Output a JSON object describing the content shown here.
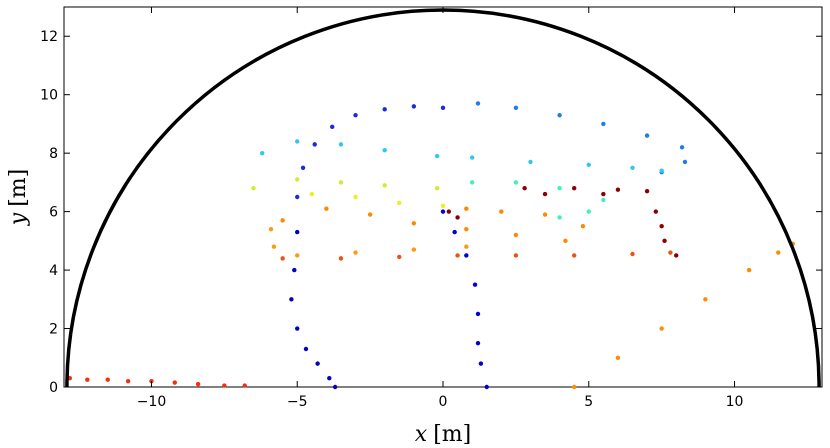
{
  "chart_data": {
    "type": "scatter",
    "title": "",
    "xlabel": {
      "symbol": "x",
      "unit": "[m]"
    },
    "ylabel": {
      "symbol": "y",
      "unit": "[m]"
    },
    "xlim": [
      -13,
      13
    ],
    "ylim": [
      0,
      13
    ],
    "xticks": [
      -10,
      -5,
      0,
      5,
      10
    ],
    "yticks": [
      0,
      2,
      4,
      6,
      8,
      10,
      12
    ],
    "grid": false,
    "legend": "none",
    "colormap": "jet",
    "boundary": {
      "shape": "semicircle",
      "center": [
        0,
        0
      ],
      "radius": 12.9,
      "color": "#000000"
    },
    "series": [
      {
        "color": "#f03010",
        "points": [
          [
            -12.8,
            0.3
          ],
          [
            -12.2,
            0.25
          ],
          [
            -11.5,
            0.25
          ],
          [
            -10.8,
            0.2
          ],
          [
            -10.0,
            0.2
          ],
          [
            -9.2,
            0.15
          ],
          [
            -8.4,
            0.1
          ],
          [
            -7.5,
            0.05
          ],
          [
            -6.8,
            0.05
          ]
        ]
      },
      {
        "color": "#0000c8",
        "points": [
          [
            -5.0,
            5.3
          ],
          [
            -5.1,
            4.0
          ],
          [
            -5.2,
            3.0
          ],
          [
            -5.0,
            2.0
          ],
          [
            -4.7,
            1.3
          ],
          [
            -4.3,
            0.8
          ],
          [
            -3.9,
            0.3
          ],
          [
            -3.7,
            0.0
          ]
        ]
      },
      {
        "color": "#0000d8",
        "points": [
          [
            0.0,
            6.0
          ],
          [
            0.4,
            5.3
          ],
          [
            0.8,
            4.5
          ],
          [
            1.1,
            3.5
          ],
          [
            1.2,
            2.5
          ],
          [
            1.2,
            1.5
          ],
          [
            1.3,
            0.8
          ],
          [
            1.5,
            0.0
          ]
        ]
      },
      {
        "color": "#1a2ae0",
        "points": [
          [
            -5.0,
            6.5
          ],
          [
            -4.8,
            7.5
          ],
          [
            -4.4,
            8.3
          ],
          [
            -3.8,
            8.9
          ],
          [
            -3.0,
            9.3
          ],
          [
            -2.0,
            9.5
          ],
          [
            -1.0,
            9.6
          ],
          [
            0.0,
            9.55
          ]
        ]
      },
      {
        "color": "#1e7cf0",
        "points": [
          [
            1.2,
            9.7
          ],
          [
            2.5,
            9.55
          ],
          [
            4.0,
            9.3
          ],
          [
            5.5,
            9.0
          ],
          [
            7.0,
            8.6
          ],
          [
            8.2,
            8.2
          ],
          [
            8.3,
            7.7
          ],
          [
            7.5,
            7.35
          ]
        ]
      },
      {
        "color": "#30c8f0",
        "points": [
          [
            -6.2,
            8.0
          ],
          [
            -5.0,
            8.4
          ],
          [
            -3.5,
            8.3
          ],
          [
            -2.0,
            8.1
          ],
          [
            -0.2,
            7.9
          ],
          [
            1.0,
            7.85
          ],
          [
            3.0,
            7.7
          ],
          [
            5.0,
            7.6
          ],
          [
            6.5,
            7.5
          ],
          [
            7.5,
            7.4
          ]
        ]
      },
      {
        "color": "#40f0c0",
        "points": [
          [
            1.0,
            7.0
          ],
          [
            2.5,
            7.0
          ],
          [
            4.0,
            6.8
          ],
          [
            5.5,
            6.4
          ],
          [
            5.0,
            6.0
          ],
          [
            4.0,
            5.8
          ]
        ]
      },
      {
        "color": "#c8f030",
        "points": [
          [
            -6.5,
            6.8
          ],
          [
            -5.0,
            7.1
          ],
          [
            -3.5,
            7.0
          ],
          [
            -2.0,
            6.9
          ],
          [
            -0.2,
            6.8
          ]
        ]
      },
      {
        "color": "#e8f020",
        "points": [
          [
            -4.5,
            6.6
          ],
          [
            -3.0,
            6.5
          ],
          [
            -1.5,
            6.3
          ],
          [
            0.0,
            6.2
          ]
        ]
      },
      {
        "color": "#ff8800",
        "points": [
          [
            -5.5,
            5.7
          ],
          [
            -4.0,
            6.1
          ],
          [
            -2.5,
            5.9
          ],
          [
            -1.0,
            5.6
          ],
          [
            0.8,
            5.4
          ],
          [
            2.5,
            5.2
          ],
          [
            4.2,
            5.0
          ],
          [
            4.8,
            5.5
          ],
          [
            3.5,
            5.9
          ],
          [
            2.0,
            6.0
          ],
          [
            0.8,
            6.1
          ]
        ]
      },
      {
        "color": "#ff9a10",
        "points": [
          [
            -5.9,
            5.4
          ],
          [
            -5.8,
            4.8
          ],
          [
            -5.0,
            4.5
          ],
          [
            -3.0,
            4.6
          ],
          [
            -1.0,
            4.7
          ],
          [
            0.8,
            4.8
          ]
        ]
      },
      {
        "color": "#f05010",
        "points": [
          [
            -5.5,
            4.4
          ],
          [
            -3.5,
            4.4
          ],
          [
            -1.5,
            4.45
          ],
          [
            0.5,
            4.5
          ],
          [
            2.5,
            4.5
          ],
          [
            4.5,
            4.5
          ],
          [
            6.5,
            4.55
          ],
          [
            7.8,
            4.6
          ]
        ]
      },
      {
        "color": "#8b0000",
        "points": [
          [
            0.2,
            6.0
          ],
          [
            0.5,
            5.8
          ],
          [
            2.8,
            6.8
          ],
          [
            4.5,
            6.8
          ],
          [
            6.0,
            6.75
          ],
          [
            7.0,
            6.7
          ],
          [
            7.3,
            6.0
          ],
          [
            7.6,
            5.0
          ],
          [
            8.0,
            4.5
          ],
          [
            7.5,
            5.5
          ],
          [
            5.5,
            6.6
          ],
          [
            3.5,
            6.6
          ]
        ]
      },
      {
        "color": "#ff8c00",
        "points": [
          [
            4.5,
            0.0
          ],
          [
            6.0,
            1.0
          ],
          [
            7.5,
            2.0
          ],
          [
            9.0,
            3.0
          ],
          [
            10.5,
            4.0
          ],
          [
            11.5,
            4.6
          ],
          [
            12.0,
            4.9
          ]
        ]
      }
    ]
  }
}
